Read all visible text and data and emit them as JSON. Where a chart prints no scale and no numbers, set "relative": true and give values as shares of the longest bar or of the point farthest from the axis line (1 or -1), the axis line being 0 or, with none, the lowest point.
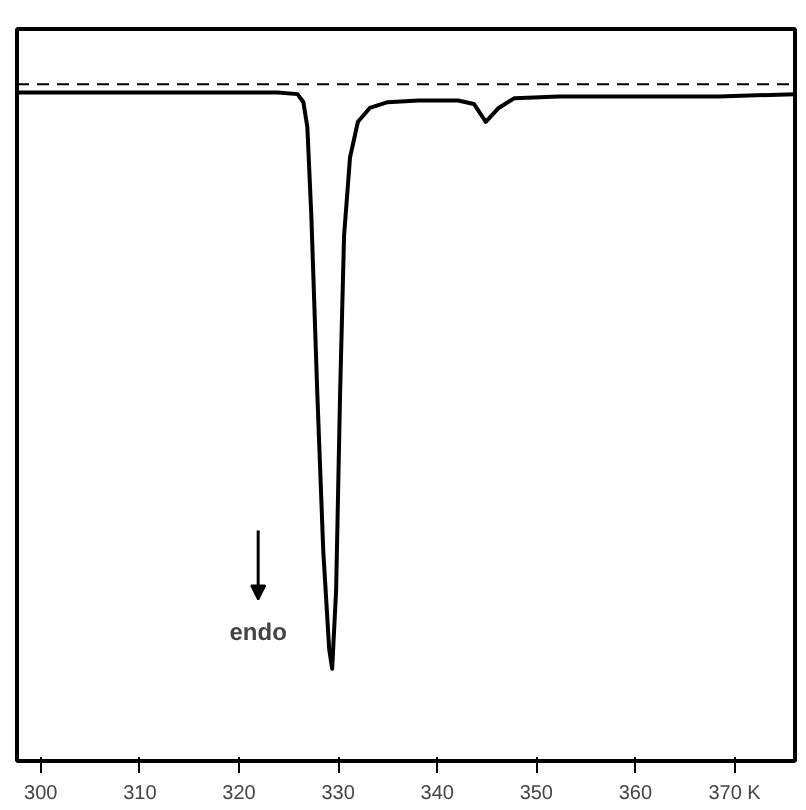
{
  "chart_data": {
    "type": "line",
    "relative": true,
    "x": [
      297.6,
      307.7,
      315.8,
      323.9,
      325.9,
      326.5,
      326.9,
      327.3,
      327.9,
      328.5,
      329.1,
      329.4,
      329.8,
      330.2,
      330.6,
      331.2,
      332.0,
      333.2,
      335.0,
      338.1,
      342.1,
      343.7,
      344.9,
      346.2,
      347.8,
      352.3,
      360.3,
      368.4,
      376.1
    ],
    "series": [
      {
        "color": "#000000",
        "values": [
          1.0,
          1.0,
          1.0,
          1.0,
          0.997,
          0.983,
          0.939,
          0.785,
          0.478,
          0.205,
          0.034,
          0,
          0.137,
          0.478,
          0.751,
          0.887,
          0.949,
          0.973,
          0.983,
          0.986,
          0.986,
          0.98,
          0.949,
          0.973,
          0.99,
          0.993,
          0.993,
          0.993,
          0.997
        ]
      }
    ],
    "xlim": [
      297.6,
      376.1
    ],
    "xticks": [
      300,
      310,
      320,
      330,
      340,
      350,
      360,
      {
        "value": 370,
        "label": "370 K"
      }
    ],
    "ref_lines": [
      {
        "axis": "y",
        "value": 1.014,
        "line_style": "dashed",
        "color": "#000000"
      }
    ],
    "annotations": [
      "endo"
    ],
    "grid": false,
    "marker": "none",
    "line_style": "solid"
  }
}
